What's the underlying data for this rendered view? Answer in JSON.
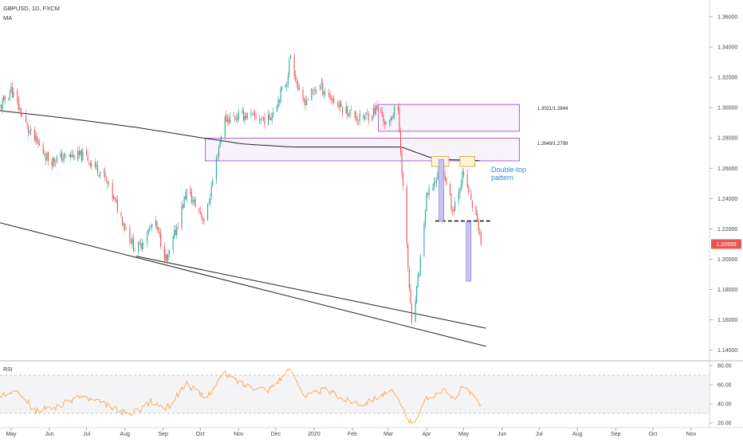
{
  "header": {
    "title": "GBPUSD, 1D, FXCM",
    "indicator": "MA"
  },
  "rsi": {
    "label": "RSI",
    "ticks": [
      "80.00",
      "60.00",
      "40.00",
      "20.00"
    ]
  },
  "colors": {
    "bull": "#26a69a",
    "bear": "#ef5350",
    "ma": "#222222",
    "zone_border": "#a23cc8",
    "zone_fill": "#f6f3fa",
    "top_box_border": "#c9a03a",
    "top_box_fill": "#fdf4d8",
    "measure_fill": "#c7c3f0",
    "measure_border": "#7c6fd6",
    "rsi_line": "#f5a142",
    "rsi_band": "#f4f4f6",
    "price_badge": "#ef5350",
    "annotation_text": "#2b8ed6"
  },
  "annotations": {
    "zone1_label": "1.3021/1.2844",
    "zone2_label": "1.2649/1.2799",
    "pattern_label_1": "Double-top",
    "pattern_label_2": "pattern"
  },
  "chart_data": {
    "type": "candlestick",
    "title": "GBPUSD, 1D, FXCM",
    "y_ticks": [
      "1.36000",
      "1.34000",
      "1.32000",
      "1.30000",
      "1.28000",
      "1.26000",
      "1.24000",
      "1.22000",
      "1.20000",
      "1.18000",
      "1.16000",
      "1.14000"
    ],
    "ylim": [
      1.133,
      1.371
    ],
    "x_ticks": [
      "May",
      "Jun",
      "Jul",
      "Aug",
      "Sep",
      "Oct",
      "Nov",
      "Dec",
      "2020",
      "Feb",
      "Mar",
      "Apr",
      "May",
      "Jun",
      "Jul",
      "Aug",
      "Sep",
      "Oct",
      "Nov"
    ],
    "last_price": "1.20999",
    "price_anchors": [
      [
        "2019-04-22",
        1.3
      ],
      [
        "2019-05-01",
        1.312
      ],
      [
        "2019-05-15",
        1.285
      ],
      [
        "2019-06-01",
        1.265
      ],
      [
        "2019-06-15",
        1.268
      ],
      [
        "2019-06-30",
        1.268
      ],
      [
        "2019-07-15",
        1.255
      ],
      [
        "2019-08-10",
        1.205
      ],
      [
        "2019-08-25",
        1.225
      ],
      [
        "2019-09-04",
        1.198
      ],
      [
        "2019-09-20",
        1.245
      ],
      [
        "2019-10-05",
        1.225
      ],
      [
        "2019-10-20",
        1.292
      ],
      [
        "2019-11-05",
        1.295
      ],
      [
        "2019-11-25",
        1.292
      ],
      [
        "2019-12-10",
        1.318
      ],
      [
        "2019-12-13",
        1.335
      ],
      [
        "2019-12-22",
        1.302
      ],
      [
        "2020-01-05",
        1.315
      ],
      [
        "2020-01-20",
        1.302
      ],
      [
        "2020-02-08",
        1.292
      ],
      [
        "2020-02-22",
        1.3
      ],
      [
        "2020-03-01",
        1.285
      ],
      [
        "2020-03-08",
        1.308
      ],
      [
        "2020-03-12",
        1.26
      ],
      [
        "2020-03-20",
        1.155
      ],
      [
        "2020-03-25",
        1.185
      ],
      [
        "2020-04-01",
        1.24
      ],
      [
        "2020-04-14",
        1.262
      ],
      [
        "2020-04-22",
        1.232
      ],
      [
        "2020-04-30",
        1.255
      ],
      [
        "2020-05-05",
        1.245
      ],
      [
        "2020-05-14",
        1.218
      ],
      [
        "2020-05-15",
        1.21
      ]
    ],
    "ma_anchors": [
      [
        "2019-04-22",
        1.298
      ],
      [
        "2019-06-15",
        1.293
      ],
      [
        "2019-08-10",
        1.287
      ],
      [
        "2019-09-25",
        1.281
      ],
      [
        "2019-11-05",
        1.276
      ],
      [
        "2019-12-15",
        1.274
      ],
      [
        "2020-01-20",
        1.274
      ],
      [
        "2020-02-22",
        1.274
      ],
      [
        "2020-03-12",
        1.274
      ],
      [
        "2020-03-25",
        1.27
      ],
      [
        "2020-04-08",
        1.266
      ],
      [
        "2020-05-15",
        1.265
      ]
    ],
    "rsi_anchors": [
      [
        "2019-04-22",
        45
      ],
      [
        "2019-05-05",
        58
      ],
      [
        "2019-05-20",
        32
      ],
      [
        "2019-06-10",
        38
      ],
      [
        "2019-06-25",
        48
      ],
      [
        "2019-07-15",
        40
      ],
      [
        "2019-08-05",
        28
      ],
      [
        "2019-08-22",
        42
      ],
      [
        "2019-09-04",
        35
      ],
      [
        "2019-09-20",
        62
      ],
      [
        "2019-10-05",
        45
      ],
      [
        "2019-10-20",
        72
      ],
      [
        "2019-11-05",
        60
      ],
      [
        "2019-11-25",
        55
      ],
      [
        "2019-12-13",
        76
      ],
      [
        "2019-12-25",
        48
      ],
      [
        "2020-01-10",
        55
      ],
      [
        "2020-01-25",
        45
      ],
      [
        "2020-02-10",
        40
      ],
      [
        "2020-02-25",
        50
      ],
      [
        "2020-03-05",
        52
      ],
      [
        "2020-03-20",
        18
      ],
      [
        "2020-04-01",
        45
      ],
      [
        "2020-04-14",
        55
      ],
      [
        "2020-04-22",
        45
      ],
      [
        "2020-05-01",
        58
      ],
      [
        "2020-05-15",
        38
      ]
    ],
    "rsi_ylim": [
      15,
      85
    ],
    "rsi_levels": [
      70,
      30
    ],
    "rectangle_zones": [
      {
        "label": "1.3021/1.2844",
        "x0": "2020-02-22",
        "x1": "2020-06-15",
        "y0": 1.2844,
        "y1": 1.3021
      },
      {
        "label": "1.2649/1.2799",
        "x0": "2019-10-05",
        "x1": "2020-06-15",
        "y0": 1.2649,
        "y1": 1.2799
      }
    ],
    "double_top": {
      "label": "Double-top pattern",
      "tops": [
        {
          "x0": "2020-04-05",
          "x1": "2020-04-19",
          "y0": 1.2612,
          "y1": 1.2678
        },
        {
          "x0": "2020-04-28",
          "x1": "2020-05-10",
          "y0": 1.2612,
          "y1": 1.2678
        }
      ],
      "neckline": {
        "x0": "2020-04-08",
        "x1": "2020-05-24",
        "y": 1.2252
      },
      "measured_moves": [
        {
          "x0": "2020-04-11",
          "x1": "2020-04-15",
          "y0": 1.2252,
          "y1": 1.2658
        },
        {
          "x0": "2020-05-03",
          "x1": "2020-05-07",
          "y0": 1.1855,
          "y1": 1.2248
        }
      ]
    },
    "trendlines": [
      {
        "x0": "2019-04-22",
        "y0": 1.224,
        "x1": "2020-05-19",
        "y1": 1.1425
      },
      {
        "x0": "2019-08-10",
        "y0": 1.202,
        "x1": "2020-05-19",
        "y1": 1.1545
      }
    ]
  }
}
